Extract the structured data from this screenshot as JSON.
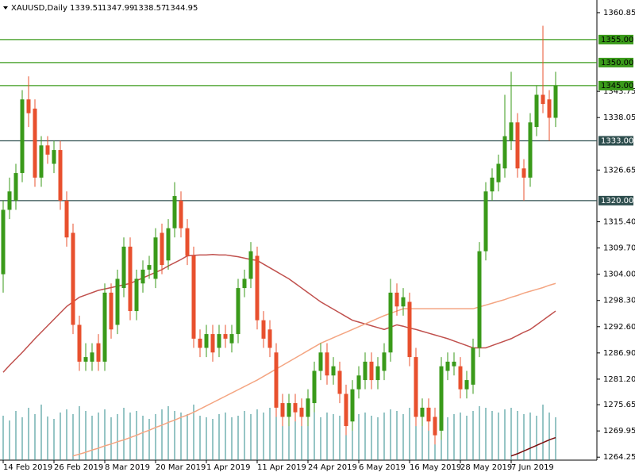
{
  "chart_data": {
    "type": "candlestick",
    "symbol": "XAUUSD,Daily",
    "ohlc": [
      1339.51,
      1347.99,
      1338.57,
      1344.95
    ],
    "categories": [
      "14 Feb 2019",
      null,
      null,
      null,
      null,
      null,
      null,
      null,
      "26 Feb 2019",
      null,
      null,
      null,
      null,
      null,
      null,
      null,
      "8 Mar 2019",
      null,
      null,
      null,
      null,
      null,
      null,
      null,
      "20 Mar 2019",
      null,
      null,
      null,
      null,
      null,
      null,
      null,
      "1 Apr 2019",
      null,
      null,
      null,
      null,
      null,
      null,
      null,
      "11 Apr 2019",
      null,
      null,
      null,
      null,
      null,
      null,
      null,
      "24 Apr 2019",
      null,
      null,
      null,
      null,
      null,
      null,
      null,
      "6 May 2019",
      null,
      null,
      null,
      null,
      null,
      null,
      null,
      "16 May 2019",
      null,
      null,
      null,
      null,
      null,
      null,
      null,
      "28 May 2019",
      null,
      null,
      null,
      null,
      null,
      null,
      null,
      "7 Jun 2019",
      null,
      null,
      null,
      null,
      null,
      null,
      null
    ],
    "open": [
      1304,
      1318,
      1320,
      1326,
      1342,
      1340,
      1325,
      1332,
      1328,
      1331,
      1320,
      1313,
      1293,
      1285,
      1285,
      1289,
      1285,
      1300,
      1293,
      1301,
      1310,
      1296,
      1302,
      1305,
      1303,
      1313,
      1307,
      1314,
      1320,
      1314,
      1308,
      1290,
      1288,
      1291,
      1288,
      1291,
      1289,
      1291,
      1301,
      1303,
      1308,
      1294,
      1292,
      1287,
      1276,
      1273,
      1276,
      1275,
      1273,
      1276,
      1283,
      1287,
      1282,
      1283,
      1278,
      1272,
      1279,
      1281,
      1285,
      1281,
      1283,
      1287,
      1300,
      1297,
      1298,
      1286,
      1273,
      1275,
      1273,
      1270,
      1283,
      1284,
      1284,
      1279,
      1280,
      1288,
      1309,
      1322,
      1324,
      1327,
      1333,
      1337,
      1327,
      1325,
      1336,
      1343,
      1342,
      1338
    ],
    "high": [
      1320,
      1325,
      1328,
      1344,
      1347,
      1342,
      1334,
      1334,
      1333,
      1333,
      1322,
      1315,
      1295,
      1289,
      1289,
      1291,
      1302,
      1302,
      1305,
      1312,
      1312,
      1305,
      1307,
      1308,
      1314,
      1315,
      1316,
      1324,
      1322,
      1316,
      1310,
      1292,
      1293,
      1293,
      1293,
      1293,
      1293,
      1303,
      1305,
      1311,
      1310,
      1296,
      1294,
      1289,
      1278,
      1278,
      1278,
      1277,
      1279,
      1285,
      1289,
      1289,
      1286,
      1285,
      1280,
      1281,
      1284,
      1287,
      1287,
      1286,
      1289,
      1303,
      1302,
      1301,
      1300,
      1288,
      1277,
      1277,
      1275,
      1286,
      1287,
      1287,
      1286,
      1283,
      1290,
      1311,
      1324,
      1327,
      1330,
      1343,
      1348,
      1339,
      1329,
      1339,
      1345,
      1358,
      1344,
      1348
    ],
    "low": [
      1300,
      1316,
      1318,
      1324,
      1336,
      1323,
      1323,
      1328,
      1326,
      1318,
      1310,
      1291,
      1283,
      1283,
      1283,
      1283,
      1283,
      1290,
      1291,
      1299,
      1294,
      1294,
      1300,
      1303,
      1301,
      1304,
      1305,
      1312,
      1312,
      1306,
      1288,
      1286,
      1286,
      1285,
      1286,
      1288,
      1287,
      1289,
      1299,
      1301,
      1292,
      1288,
      1286,
      1273,
      1271,
      1271,
      1272,
      1271,
      1271,
      1274,
      1281,
      1280,
      1280,
      1276,
      1269,
      1270,
      1277,
      1279,
      1279,
      1279,
      1281,
      1285,
      1295,
      1295,
      1284,
      1271,
      1271,
      1270,
      1267,
      1268,
      1281,
      1282,
      1277,
      1277,
      1278,
      1286,
      1307,
      1320,
      1322,
      1325,
      1331,
      1325,
      1320,
      1323,
      1334,
      1339,
      1333,
      1336
    ],
    "close": [
      1318,
      1322,
      1326,
      1342,
      1339,
      1325,
      1332,
      1330,
      1331,
      1320,
      1312,
      1293,
      1285,
      1286,
      1287,
      1285,
      1300,
      1292,
      1303,
      1310,
      1296,
      1303,
      1305,
      1306,
      1312,
      1306,
      1314,
      1321,
      1314,
      1308,
      1290,
      1288,
      1291,
      1287,
      1291,
      1290,
      1291,
      1301,
      1303,
      1309,
      1294,
      1290,
      1288,
      1275,
      1273,
      1276,
      1274,
      1273,
      1277,
      1283,
      1287,
      1282,
      1284,
      1278,
      1271,
      1279,
      1282,
      1285,
      1281,
      1284,
      1287,
      1300,
      1297,
      1299,
      1286,
      1273,
      1275,
      1272,
      1269,
      1284,
      1285,
      1285,
      1279,
      1281,
      1288,
      1309,
      1322,
      1325,
      1328,
      1334,
      1337,
      1327,
      1325,
      1337,
      1343,
      1341,
      1338,
      1345
    ],
    "volume": [
      56,
      50,
      62,
      54,
      66,
      58,
      70,
      55,
      52,
      60,
      64,
      58,
      68,
      62,
      56,
      60,
      64,
      54,
      58,
      66,
      60,
      62,
      56,
      52,
      58,
      64,
      68,
      62,
      60,
      58,
      70,
      56,
      54,
      52,
      58,
      60,
      54,
      56,
      62,
      58,
      64,
      60,
      66,
      70,
      58,
      54,
      56,
      52,
      58,
      62,
      54,
      60,
      58,
      56,
      64,
      62,
      58,
      60,
      56,
      54,
      60,
      64,
      62,
      58,
      66,
      70,
      60,
      56,
      58,
      62,
      54,
      58,
      60,
      56,
      62,
      68,
      66,
      62,
      60,
      64,
      66,
      62,
      58,
      60,
      56,
      70,
      60,
      54
    ],
    "ma": [
      {
        "color": "#c0504d",
        "values": [
          1282.7,
          1284.2,
          1285.6,
          1287,
          1288.5,
          1290,
          1291.4,
          1292.8,
          1294.2,
          1295.6,
          1297,
          1298,
          1299,
          1299.5,
          1300,
          1300.5,
          1300.8,
          1301.1,
          1301.4,
          1301.7,
          1302,
          1302.6,
          1303.2,
          1303.8,
          1304.4,
          1305,
          1305.8,
          1306.5,
          1307.2,
          1308,
          1308.1,
          1308.2,
          1308.2,
          1308.3,
          1308.2,
          1308.2,
          1308,
          1307.8,
          1307.5,
          1307.2,
          1307,
          1306.2,
          1305.4,
          1304.6,
          1303.8,
          1303,
          1302,
          1301,
          1300,
          1299,
          1298,
          1297.2,
          1296.4,
          1295.6,
          1294.8,
          1294,
          1293.6,
          1293.2,
          1292.8,
          1292.4,
          1292,
          1292.5,
          1293,
          1292.7,
          1292.3,
          1292,
          1291.6,
          1291.2,
          1290.8,
          1290.4,
          1290,
          1289.5,
          1289,
          1288.5,
          1288,
          1288,
          1288,
          1288.5,
          1289,
          1289.5,
          1290,
          1290.7,
          1291.4,
          1292,
          1293,
          1294,
          1295,
          1296
        ]
      },
      {
        "color": "#f4a582",
        "values": [
          null,
          null,
          null,
          null,
          null,
          null,
          null,
          null,
          null,
          null,
          null,
          1264.5,
          1264.9,
          1265.3,
          1265.8,
          1266.2,
          1266.7,
          1267.1,
          1267.6,
          1268,
          1268.5,
          1269,
          1269.6,
          1270.1,
          1270.7,
          1271.2,
          1271.8,
          1272.3,
          1272.9,
          1273.4,
          1274,
          1274.7,
          1275.4,
          1276.1,
          1276.8,
          1277.5,
          1278.2,
          1278.9,
          1279.6,
          1280.3,
          1281,
          1281.8,
          1282.6,
          1283.4,
          1284.2,
          1285,
          1285.8,
          1286.6,
          1287.4,
          1288.2,
          1289,
          1289.6,
          1290.2,
          1290.8,
          1291.4,
          1292,
          1292.6,
          1293.2,
          1293.8,
          1294.4,
          1295,
          1295.5,
          1296,
          1296.5,
          1296.5,
          1296.5,
          1296.5,
          1296.5,
          1296.5,
          1296.5,
          1296.5,
          1296.5,
          1296.5,
          1296.5,
          1296.5,
          1296.9,
          1297.3,
          1297.7,
          1298.1,
          1298.5,
          1299,
          1299.4,
          1299.9,
          1300.3,
          1300.7,
          1301.1,
          1301.6,
          1302
        ]
      },
      {
        "color": "#7a0c0c",
        "values": [
          null,
          null,
          null,
          null,
          null,
          null,
          null,
          null,
          null,
          null,
          null,
          null,
          null,
          null,
          null,
          null,
          null,
          null,
          null,
          null,
          null,
          null,
          null,
          null,
          null,
          null,
          null,
          null,
          null,
          null,
          null,
          null,
          null,
          null,
          null,
          null,
          null,
          null,
          null,
          null,
          null,
          null,
          null,
          null,
          null,
          null,
          null,
          null,
          null,
          null,
          null,
          null,
          null,
          null,
          null,
          null,
          null,
          null,
          null,
          null,
          null,
          null,
          null,
          null,
          null,
          null,
          null,
          null,
          null,
          null,
          null,
          null,
          null,
          null,
          null,
          null,
          null,
          null,
          null,
          null,
          1264.5,
          1265,
          1265.6,
          1266.2,
          1266.8,
          1267.4,
          1268,
          1268.5
        ]
      }
    ],
    "levels": [
      {
        "value": 1355,
        "label": "1355.00",
        "color": "#3a9a1a"
      },
      {
        "value": 1350,
        "label": "1350.00",
        "color": "#3a9a1a"
      },
      {
        "value": 1345,
        "label": "1345.00",
        "color": "#3a9a1a"
      },
      {
        "value": 1333,
        "label": "1333.00",
        "color": "#2f4f4f"
      },
      {
        "value": 1320,
        "label": "1320.00",
        "color": "#2f4f4f"
      }
    ],
    "up_color": "#3a9a1a",
    "down_color": "#e8502e",
    "volume_color": "#2e8b8b",
    "ylim": [
      1263.6,
      1363.6
    ],
    "yticks": [
      1360.85,
      1343.75,
      1338.05,
      1326.65,
      {
        "value": 1315.4,
        "label": "1315.40"
      },
      {
        "value": 1309.7,
        "label": "1309.70"
      },
      {
        "value": 1304,
        "label": "1304.00"
      },
      {
        "value": 1298.3,
        "label": "1298.30"
      },
      {
        "value": 1292.6,
        "label": "1292.60"
      },
      {
        "value": 1286.9,
        "label": "1286.90"
      },
      {
        "value": 1281.2,
        "label": "1281.20"
      },
      1275.65,
      1269.95,
      1264.25
    ]
  }
}
